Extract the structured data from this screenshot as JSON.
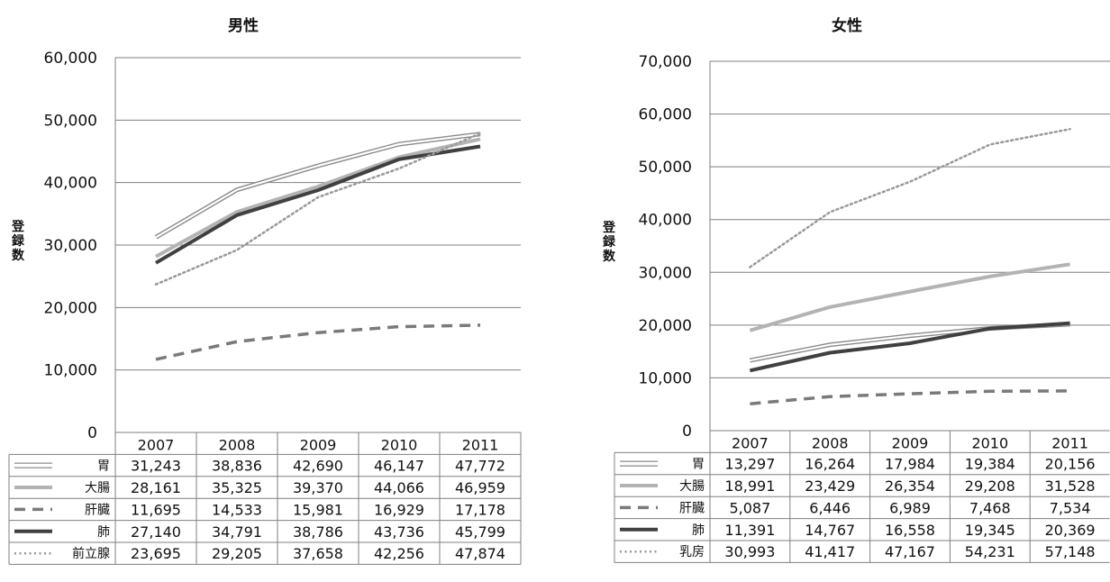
{
  "chart_data": [
    {
      "type": "line",
      "title": "男性",
      "ylabel": "登録数",
      "xlabel": "",
      "categories": [
        "2007",
        "2008",
        "2009",
        "2010",
        "2011"
      ],
      "ylim": [
        0,
        60000
      ],
      "yticks": [
        "0",
        "10,000",
        "20,000",
        "30,000",
        "40,000",
        "50,000",
        "60,000"
      ],
      "grid": true,
      "legend": "data-table",
      "series": [
        {
          "name": "胃",
          "style": "double",
          "color": "#8a8a8a",
          "values": [
            31243,
            38836,
            42690,
            46147,
            47772
          ],
          "labels": [
            "31,243",
            "38,836",
            "42,690",
            "46,147",
            "47,772"
          ]
        },
        {
          "name": "大腸",
          "style": "solid-light",
          "color": "#b3b3b3",
          "values": [
            28161,
            35325,
            39370,
            44066,
            46959
          ],
          "labels": [
            "28,161",
            "35,325",
            "39,370",
            "44,066",
            "46,959"
          ]
        },
        {
          "name": "肝臓",
          "style": "dashed",
          "color": "#7a7a7a",
          "values": [
            11695,
            14533,
            15981,
            16929,
            17178
          ],
          "labels": [
            "11,695",
            "14,533",
            "15,981",
            "16,929",
            "17,178"
          ]
        },
        {
          "name": "肺",
          "style": "solid-dark",
          "color": "#404040",
          "values": [
            27140,
            34791,
            38786,
            43736,
            45799
          ],
          "labels": [
            "27,140",
            "34,791",
            "38,786",
            "43,736",
            "45,799"
          ]
        },
        {
          "name": "前立腺",
          "style": "dotted",
          "color": "#999999",
          "values": [
            23695,
            29205,
            37658,
            42256,
            47874
          ],
          "labels": [
            "23,695",
            "29,205",
            "37,658",
            "42,256",
            "47,874"
          ]
        }
      ]
    },
    {
      "type": "line",
      "title": "女性",
      "ylabel": "登録数",
      "xlabel": "",
      "categories": [
        "2007",
        "2008",
        "2009",
        "2010",
        "2011"
      ],
      "ylim": [
        0,
        70000
      ],
      "yticks": [
        "0",
        "10,000",
        "20,000",
        "30,000",
        "40,000",
        "50,000",
        "60,000",
        "70,000"
      ],
      "grid": true,
      "legend": "data-table",
      "series": [
        {
          "name": "胃",
          "style": "double",
          "color": "#8a8a8a",
          "values": [
            13297,
            16264,
            17984,
            19384,
            20156
          ],
          "labels": [
            "13,297",
            "16,264",
            "17,984",
            "19,384",
            "20,156"
          ]
        },
        {
          "name": "大腸",
          "style": "solid-light",
          "color": "#b3b3b3",
          "values": [
            18991,
            23429,
            26354,
            29208,
            31528
          ],
          "labels": [
            "18,991",
            "23,429",
            "26,354",
            "29,208",
            "31,528"
          ]
        },
        {
          "name": "肝臓",
          "style": "dashed",
          "color": "#7a7a7a",
          "values": [
            5087,
            6446,
            6989,
            7468,
            7534
          ],
          "labels": [
            "5,087",
            "6,446",
            "6,989",
            "7,468",
            "7,534"
          ]
        },
        {
          "name": "肺",
          "style": "solid-dark",
          "color": "#404040",
          "values": [
            11391,
            14767,
            16558,
            19345,
            20369
          ],
          "labels": [
            "11,391",
            "14,767",
            "16,558",
            "19,345",
            "20,369"
          ]
        },
        {
          "name": "乳房",
          "style": "dotted",
          "color": "#999999",
          "values": [
            30993,
            41417,
            47167,
            54231,
            57148
          ],
          "labels": [
            "30,993",
            "41,417",
            "47,167",
            "54,231",
            "57,148"
          ]
        }
      ]
    }
  ]
}
